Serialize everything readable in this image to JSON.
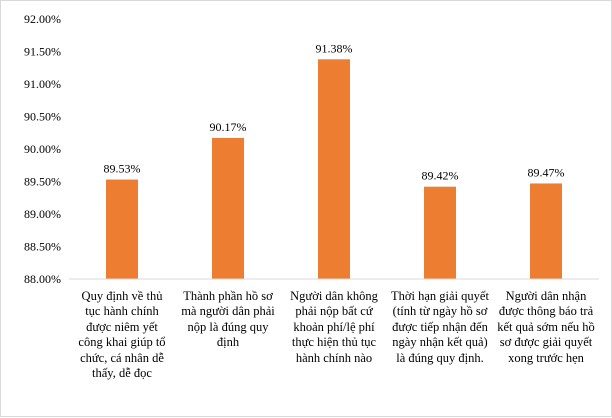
{
  "chart_data": {
    "type": "bar",
    "categories": [
      "Quy định về thủ tục hành chính được niêm yết công khai giúp tổ chức, cá nhân dễ thấy, dễ đọc",
      "Thành phần hồ sơ mà người dân phải nộp là đúng quy định",
      "Người dân không phải nộp bất cứ khoản phí/lệ phí thực hiện thủ tục hành chính nào",
      "Thời hạn giải quyết (tính từ ngày hồ sơ được tiếp nhận đến ngày nhận kết quả) là đúng quy định.",
      "Người dân nhận được thông báo trả kết quả sớm nếu hồ sơ được giải quyết xong trước hẹn"
    ],
    "values": [
      89.53,
      90.17,
      91.38,
      89.42,
      89.47
    ],
    "data_labels": [
      "89.53%",
      "90.17%",
      "91.38%",
      "89.42%",
      "89.47%"
    ],
    "ylim": [
      88.0,
      92.0
    ],
    "yticks": [
      "88.00%",
      "88.50%",
      "89.00%",
      "89.50%",
      "90.00%",
      "90.50%",
      "91.00%",
      "91.50%",
      "92.00%"
    ],
    "ytick_values": [
      88.0,
      88.5,
      89.0,
      89.5,
      90.0,
      90.5,
      91.0,
      91.5,
      92.0
    ],
    "title": "",
    "xlabel": "",
    "ylabel": "",
    "grid": false,
    "legend": "none",
    "bar_color": "#ED7D31",
    "axis_color": "#d9d9d9"
  }
}
